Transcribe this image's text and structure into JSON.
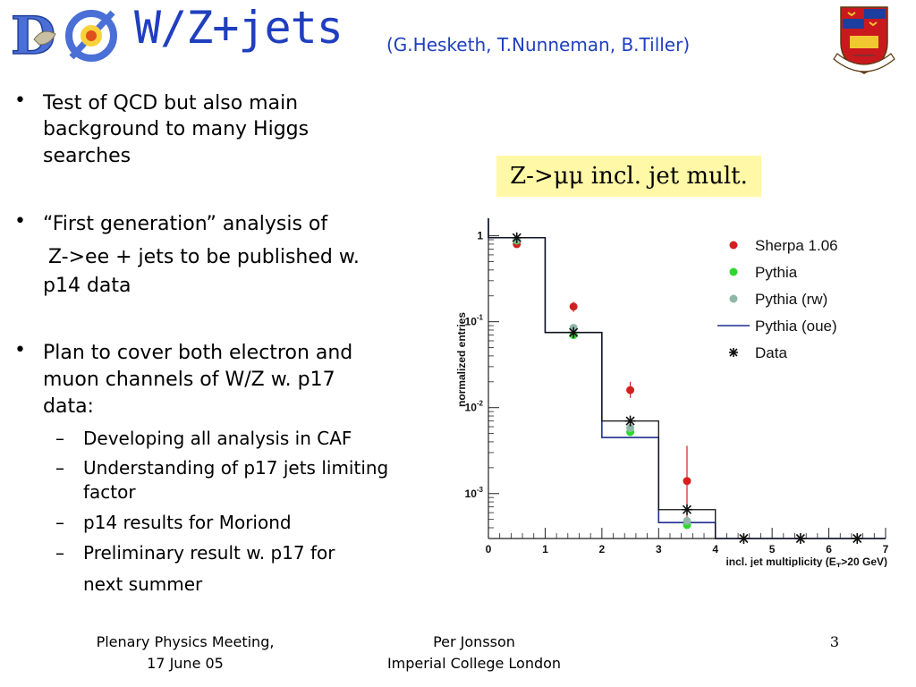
{
  "header": {
    "title": "W/Z+jets",
    "authors": "(G.Hesketh, T.Nunneman, B.Tiller)",
    "logo_icon": "dzero-logo",
    "crest_icon": "imperial-college-crest"
  },
  "bullets": {
    "b1": {
      "line1": "Test of QCD but also main",
      "line2": "background to many Higgs",
      "line3": "searches"
    },
    "b2": {
      "line1": "“First generation” analysis of",
      "line2": "Z->ee + jets to be published w.",
      "line3": "p14 data"
    },
    "b3": {
      "line1": "Plan to cover both electron and",
      "line2": "muon channels of W/Z w. p17",
      "line3": "data:"
    },
    "subs": [
      {
        "line1": "Developing all analysis in CAF"
      },
      {
        "line1": "Understanding of p17 jets limiting",
        "line2": "factor"
      },
      {
        "line1": "p14 results for Moriond"
      },
      {
        "line1": "Preliminary result w. p17 for",
        "line2": "next summer"
      }
    ],
    "dot": "•",
    "dash": "–"
  },
  "caption": "Z->μμ incl. jet mult.",
  "footer": {
    "left_line1": "Plenary Physics Meeting,",
    "left_line2": "17 June 05",
    "center_line1": "Per Jonsson",
    "center_line2": "Imperial College London",
    "page": "3"
  },
  "chart_data": {
    "type": "line",
    "xlabel": "incl. jet multiplicity (E",
    "xlabel_sub": "T",
    "xlabel_tail": ">20 GeV)",
    "ylabel": "normalized entries",
    "x_ticks": [
      "0",
      "1",
      "2",
      "3",
      "4",
      "5",
      "6",
      "7"
    ],
    "y_ticks": [
      {
        "base": "10",
        "exp": "-3",
        "value": 0.001
      },
      {
        "base": "10",
        "exp": "-2",
        "value": 0.01
      },
      {
        "base": "10",
        "exp": "-1",
        "value": 0.1
      },
      {
        "base": "1",
        "exp": "",
        "value": 1
      }
    ],
    "xlim": [
      0,
      7
    ],
    "ylim": [
      0.0003,
      1.6
    ],
    "log_y": true,
    "legend_position": "top-right",
    "series": [
      {
        "name": "Sherpa 1.06",
        "kind": "points",
        "color": "#d42020",
        "x": [
          0.5,
          1.5,
          2.5,
          3.5
        ],
        "y": [
          0.8,
          0.15,
          0.016,
          0.0014
        ],
        "err_hi": [
          0.85,
          0.17,
          0.02,
          0.0036
        ],
        "err_lo": [
          0.75,
          0.13,
          0.013,
          0.0005
        ]
      },
      {
        "name": "Pythia",
        "kind": "points",
        "color": "#2ed82e",
        "x": [
          0.5,
          1.5,
          2.5,
          3.5
        ],
        "y": [
          0.88,
          0.07,
          0.0052,
          0.00043
        ],
        "err_hi": [],
        "err_lo": []
      },
      {
        "name": "Pythia (rw)",
        "kind": "points",
        "color": "#8fb8a8",
        "x": [
          0.5,
          1.5,
          2.5,
          3.5
        ],
        "y": [
          0.9,
          0.085,
          0.0058,
          0.00048
        ],
        "err_hi": [],
        "err_lo": []
      },
      {
        "name": "Pythia (oue)",
        "kind": "hist",
        "color": "#1f2f8f",
        "edges": [
          0,
          1,
          2,
          3,
          4,
          7
        ],
        "y": [
          0.95,
          0.075,
          0.0045,
          0.00046,
          0.0003
        ]
      },
      {
        "name": "Data",
        "kind": "star",
        "color": "#111111",
        "x": [
          0.5,
          1.5,
          2.5,
          3.5,
          4.5,
          5.5,
          6.5
        ],
        "y": [
          0.95,
          0.075,
          0.007,
          0.00065,
          0.0003,
          0.0003,
          0.0003
        ]
      },
      {
        "name": "",
        "kind": "hist-data",
        "color": "#111111",
        "edges": [
          0,
          1,
          2,
          3,
          4,
          7
        ],
        "y": [
          0.95,
          0.075,
          0.007,
          0.00065,
          0.0003
        ]
      }
    ]
  }
}
